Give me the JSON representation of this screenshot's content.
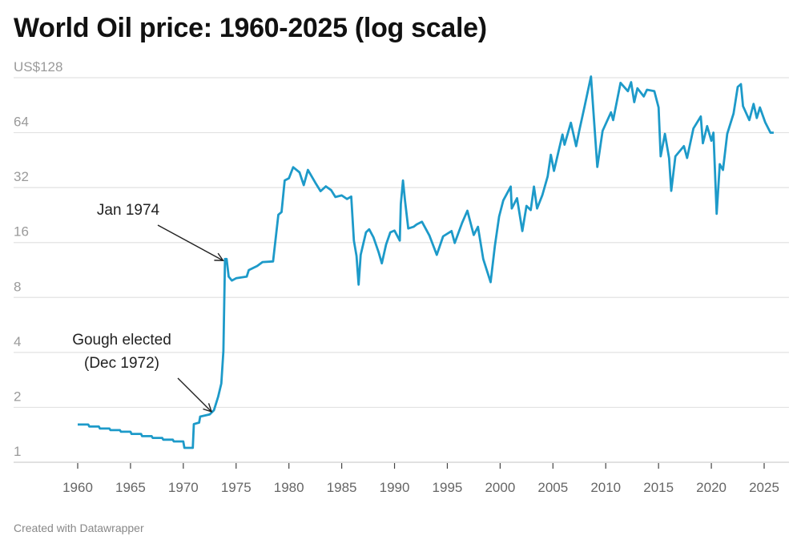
{
  "title": "World Oil price: 1960-2025 (log scale)",
  "footer": "Created with Datawrapper",
  "chart_data": {
    "type": "line",
    "title": "World Oil price: 1960-2025 (log scale)",
    "y_scale": "log2",
    "ylim": [
      1,
      128
    ],
    "y_ticks": [
      1,
      2,
      4,
      8,
      16,
      32,
      64,
      128
    ],
    "y_tick_labels": [
      "1",
      "2",
      "4",
      "8",
      "16",
      "32",
      "64",
      "US$128"
    ],
    "xlim": [
      1960,
      2025
    ],
    "x_ticks": [
      1960,
      1965,
      1970,
      1975,
      1980,
      1985,
      1990,
      1995,
      2000,
      2005,
      2010,
      2015,
      2020,
      2025
    ],
    "x_tick_labels": [
      "1960",
      "1965",
      "1970",
      "1975",
      "1980",
      "1985",
      "1990",
      "1995",
      "2000",
      "2005",
      "2010",
      "2015",
      "2020",
      "2025"
    ],
    "grid": "horizontal",
    "line_color": "#1d9ac9",
    "series": [
      {
        "x": [
          1960,
          1961,
          1961.1,
          1962,
          1962.1,
          1963,
          1963.1,
          1964,
          1964.1,
          1965,
          1965.1,
          1966,
          1966.1,
          1967,
          1967.1,
          1968,
          1968.1,
          1969,
          1969.1,
          1970,
          1970.1,
          1970.9,
          1971.0,
          1971.5,
          1971.6,
          1972.5,
          1972.9,
          1973.3,
          1973.6,
          1973.8,
          1973.95,
          1974.1,
          1974.3,
          1974.6,
          1975,
          1976,
          1976.2,
          1977,
          1977.5,
          1978.5,
          1979,
          1979.3,
          1979.6,
          1980,
          1980.4,
          1981,
          1981.4,
          1981.8,
          1982.5,
          1983,
          1983.5,
          1984,
          1984.4,
          1985,
          1985.5,
          1985.9,
          1986.15,
          1986.4,
          1986.6,
          1986.8,
          1987.3,
          1987.6,
          1988,
          1988.5,
          1988.8,
          1989.2,
          1989.6,
          1990,
          1990.5,
          1990.6,
          1990.8,
          1991,
          1991.3,
          1991.8,
          1992.1,
          1992.6,
          1993.3,
          1994.0,
          1994.6,
          1995.4,
          1995.7,
          1996.4,
          1996.9,
          1997.5,
          1997.9,
          1998.4,
          1999.1,
          1999.5,
          1999.9,
          2000.3,
          2001.0,
          2001.1,
          2001.6,
          2002.1,
          2002.5,
          2002.9,
          2003.2,
          2003.5,
          2004.0,
          2004.5,
          2004.8,
          2005.1,
          2005.9,
          2006.1,
          2006.7,
          2007.2,
          2007.5,
          2008.0,
          2008.6,
          2009.2,
          2009.7,
          2010.5,
          2010.7,
          2011.4,
          2012.1,
          2012.4,
          2012.7,
          2013.0,
          2013.6,
          2013.9,
          2014.6,
          2015.0,
          2015.2,
          2015.6,
          2016.0,
          2016.2,
          2016.6,
          2017.4,
          2017.7,
          2018.3,
          2019.0,
          2019.2,
          2019.6,
          2020.0,
          2020.2,
          2020.5,
          2020.8,
          2021.1,
          2021.5,
          2022.1,
          2022.5,
          2022.8,
          2023.0,
          2023.6,
          2024.0,
          2024.3,
          2024.6,
          2025.1,
          2025.6,
          2025.9
        ],
        "y": [
          1.61,
          1.61,
          1.57,
          1.57,
          1.53,
          1.53,
          1.5,
          1.5,
          1.47,
          1.47,
          1.43,
          1.43,
          1.39,
          1.39,
          1.36,
          1.36,
          1.33,
          1.33,
          1.3,
          1.3,
          1.2,
          1.2,
          1.62,
          1.65,
          1.78,
          1.83,
          1.93,
          2.29,
          2.7,
          4.07,
          13,
          13,
          10.4,
          9.9,
          10.2,
          10.4,
          11.3,
          11.9,
          12.5,
          12.6,
          22.7,
          23.5,
          35,
          36,
          41.4,
          38.8,
          33,
          40,
          34,
          30.6,
          32.5,
          31,
          28.4,
          29,
          27.7,
          28.6,
          16.4,
          13.5,
          9.4,
          13.7,
          18.2,
          18.9,
          17.1,
          14.1,
          12.3,
          15.6,
          18.2,
          18.6,
          16.4,
          26,
          35,
          27,
          19.1,
          19.5,
          20.1,
          20.8,
          17.5,
          13.7,
          17.3,
          18.5,
          15.9,
          20.5,
          23.9,
          17.6,
          19.5,
          13.0,
          9.7,
          15.3,
          22.2,
          27.2,
          32.4,
          24.6,
          28,
          18.5,
          25.4,
          24.1,
          32.4,
          24.6,
          29.1,
          36.8,
          48.4,
          39.5,
          62.5,
          55,
          72.5,
          54,
          66,
          89.5,
          130,
          41.5,
          65.5,
          82.7,
          75,
          120,
          108,
          121,
          94,
          112,
          101,
          110,
          108,
          88,
          47.5,
          63,
          46.5,
          30.7,
          47.5,
          54,
          46.5,
          67.5,
          78.5,
          56,
          69.5,
          57.8,
          64,
          23,
          43,
          40,
          63,
          81.5,
          114,
          118,
          89.5,
          75,
          92,
          77,
          88,
          73,
          64,
          64
        ]
      }
    ],
    "annotations": [
      {
        "lines": [
          "Jan 1974"
        ],
        "target_x": 1974.0,
        "target_y": 13
      },
      {
        "lines": [
          "Gough elected",
          "(Dec 1972)"
        ],
        "target_x": 1972.9,
        "target_y": 1.93
      }
    ]
  }
}
